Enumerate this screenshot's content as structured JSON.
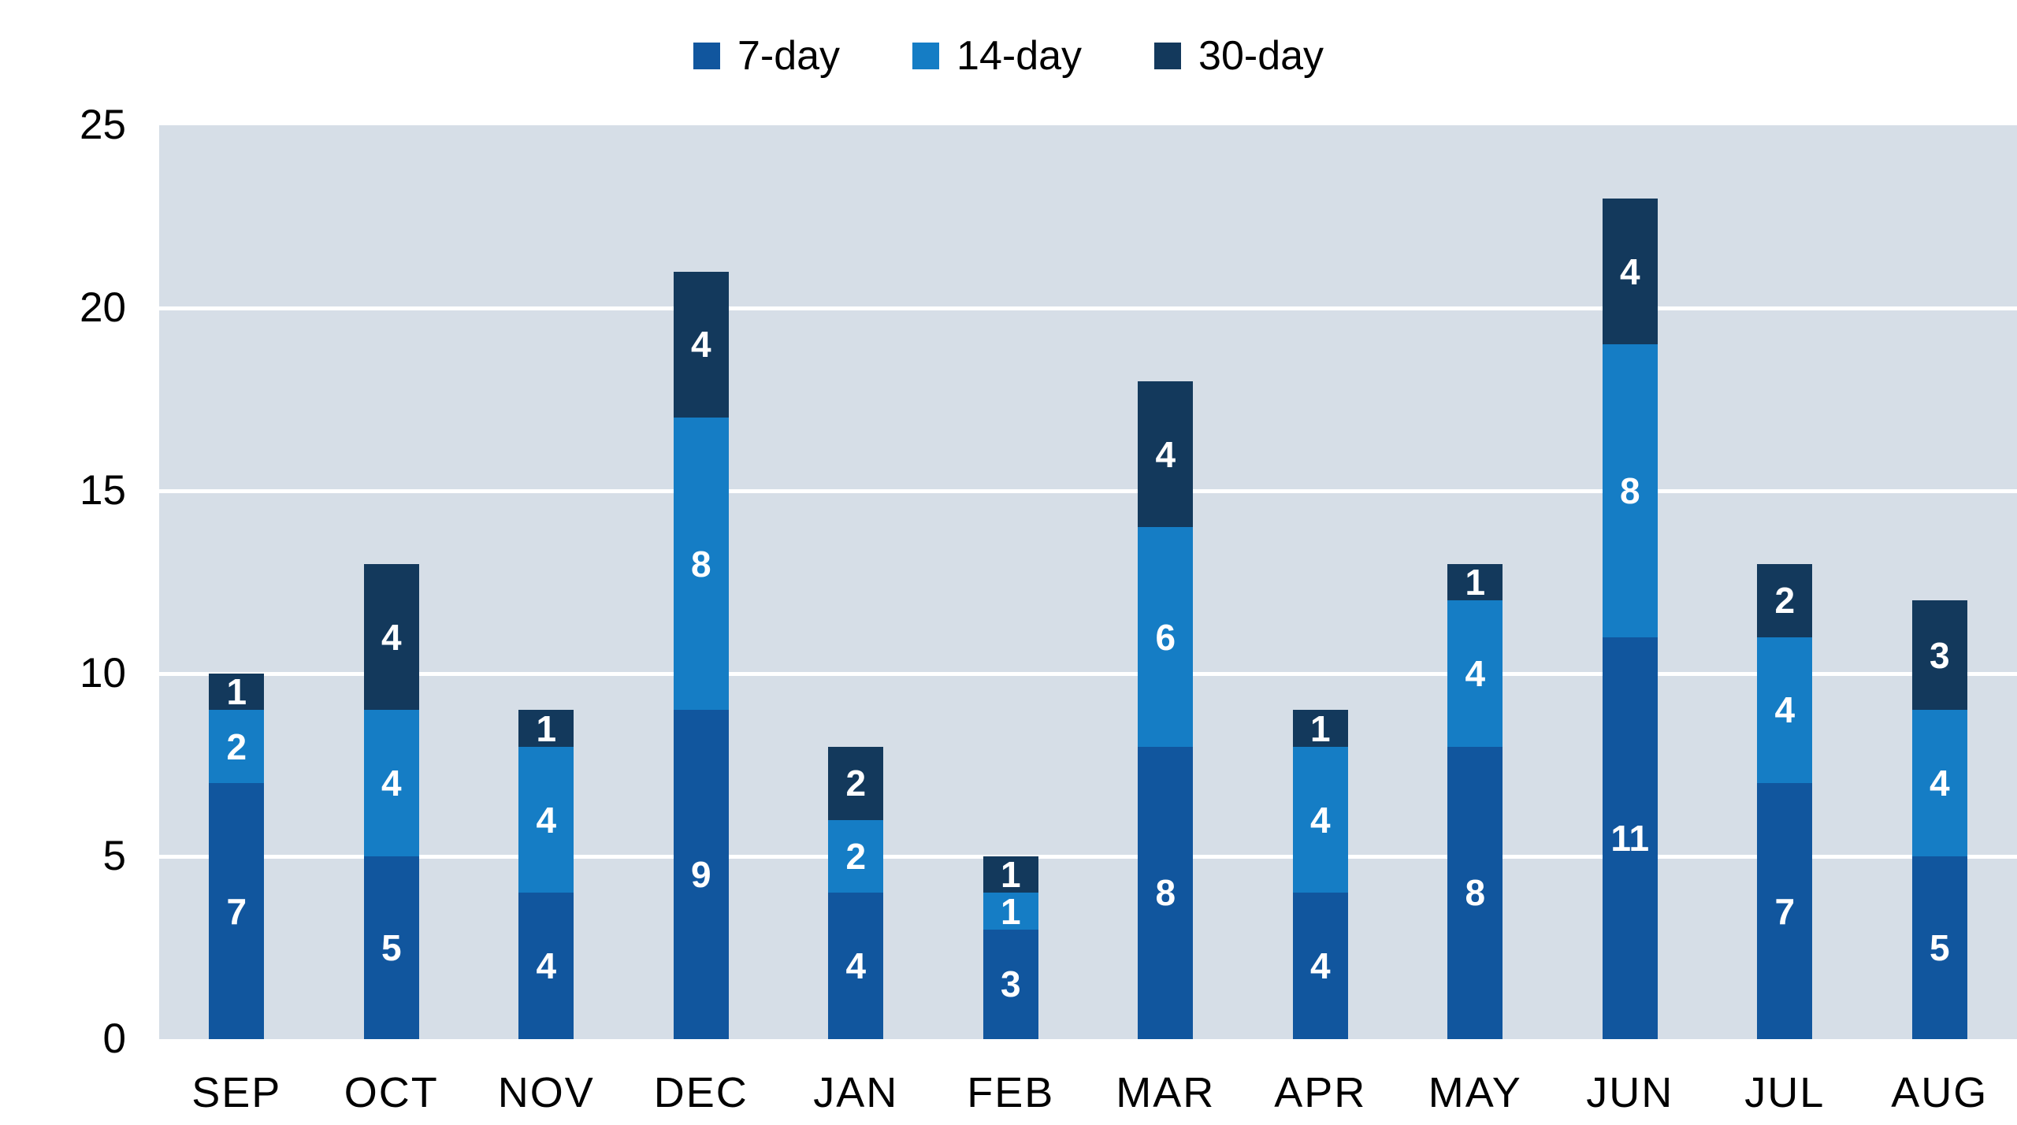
{
  "chart_data": {
    "type": "bar",
    "stacked": true,
    "title": "",
    "xlabel": "",
    "ylabel": "",
    "categories": [
      "SEP",
      "OCT",
      "NOV",
      "DEC",
      "JAN",
      "FEB",
      "MAR",
      "APR",
      "MAY",
      "JUN",
      "JUL",
      "AUG"
    ],
    "series": [
      {
        "name": "7-day",
        "color": "#11569e",
        "values": [
          7,
          5,
          4,
          9,
          4,
          3,
          8,
          4,
          8,
          11,
          7,
          5
        ]
      },
      {
        "name": "14-day",
        "color": "#157dc5",
        "values": [
          2,
          4,
          4,
          8,
          2,
          1,
          6,
          4,
          4,
          8,
          4,
          4
        ]
      },
      {
        "name": "30-day",
        "color": "#13395c",
        "values": [
          1,
          4,
          1,
          4,
          2,
          1,
          4,
          1,
          1,
          4,
          2,
          3
        ]
      }
    ],
    "totals": [
      10,
      13,
      9,
      21,
      8,
      5,
      18,
      9,
      13,
      23,
      13,
      12
    ],
    "ylim": [
      0,
      25
    ],
    "yticks": [
      0,
      5,
      10,
      15,
      20,
      25
    ],
    "grid": true,
    "legend_position": "top-center",
    "bar_value_labels": true,
    "colors": {
      "plot_background": "#d6dee7",
      "gridline": "#ffffff",
      "axis_text": "#000000",
      "value_label_text": "#ffffff"
    }
  }
}
